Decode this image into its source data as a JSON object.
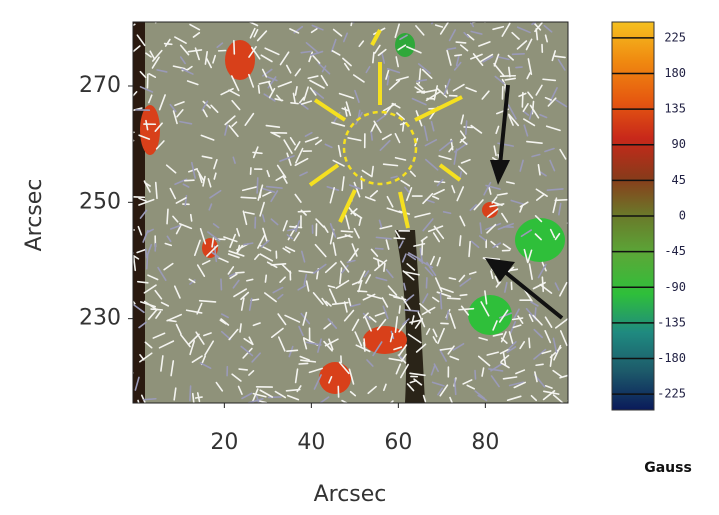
{
  "chart_data": {
    "type": "image",
    "x_label": "Arcsec",
    "y_label": "Arcsec",
    "xlim": [
      -1,
      99
    ],
    "ylim": [
      215.5,
      281
    ],
    "xticks": [
      20,
      40,
      60,
      80
    ],
    "yticks": [
      230,
      250,
      270
    ],
    "colorbar": {
      "label": "Gauss",
      "clim": [
        -245,
        245
      ],
      "ticks": [
        225,
        180,
        135,
        90,
        45,
        0,
        -45,
        -90,
        -135,
        -180,
        -225
      ],
      "colors": [
        "#0a1a5a",
        "#1d5a6a",
        "#1f8a80",
        "#2fbf3a",
        "#5aa838",
        "#6a7a2a",
        "#8a3a1a",
        "#c8281a",
        "#e65a10",
        "#f08a10",
        "#f5c020"
      ]
    }
  }
}
